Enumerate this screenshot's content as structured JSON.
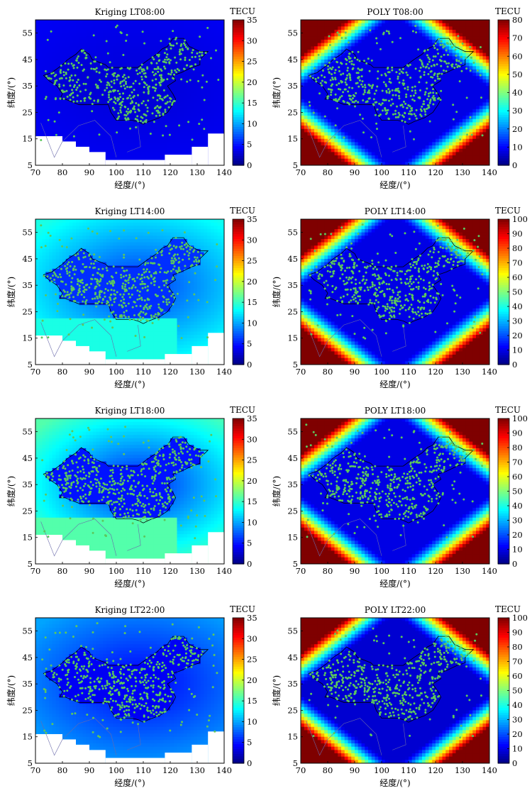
{
  "figure": {
    "colorbar_unit": "TECU"
  },
  "chart_data": [
    {
      "type": "heatmap",
      "method": "Kriging",
      "title": "Kriging LT08:00",
      "xlabel": "经度/(°)",
      "ylabel": "纬度/(°)",
      "xlim": [
        70,
        140
      ],
      "ylim": [
        5,
        60
      ],
      "xticks": [
        70,
        80,
        90,
        100,
        110,
        120,
        130,
        140
      ],
      "yticks": [
        5,
        15,
        25,
        35,
        45,
        55
      ],
      "clim": [
        0,
        35
      ],
      "cticks": [
        0,
        5,
        10,
        15,
        20,
        25,
        30,
        35
      ],
      "colorbar_label": "TECU",
      "base_tec": 3,
      "edge_tec": 4
    },
    {
      "type": "heatmap",
      "method": "POLY",
      "title": "POLY T08:00",
      "xlabel": "经度/(°)",
      "ylabel": "纬度/(°)",
      "xlim": [
        70,
        140
      ],
      "ylim": [
        5,
        60
      ],
      "xticks": [
        70,
        80,
        90,
        100,
        110,
        120,
        130,
        140
      ],
      "yticks": [
        5,
        15,
        25,
        35,
        45,
        55
      ],
      "clim": [
        0,
        80
      ],
      "cticks": [
        0,
        10,
        20,
        30,
        40,
        50,
        60,
        70,
        80
      ],
      "colorbar_label": "TECU",
      "base_tec": 8,
      "corner_tec": 80
    },
    {
      "type": "heatmap",
      "method": "Kriging",
      "title": "Kriging LT14:00",
      "xlabel": "经度/(°)",
      "ylabel": "纬度/(°)",
      "xlim": [
        70,
        140
      ],
      "ylim": [
        5,
        60
      ],
      "xticks": [
        70,
        80,
        90,
        100,
        110,
        120,
        130,
        140
      ],
      "yticks": [
        5,
        15,
        25,
        35,
        45,
        55
      ],
      "clim": [
        0,
        35
      ],
      "cticks": [
        0,
        5,
        10,
        15,
        20,
        25,
        30,
        35
      ],
      "colorbar_label": "TECU",
      "base_tec": 6,
      "edge_tec": 14
    },
    {
      "type": "heatmap",
      "method": "POLY",
      "title": "POLY LT14:00",
      "xlabel": "经度/(°)",
      "ylabel": "纬度/(°)",
      "xlim": [
        70,
        140
      ],
      "ylim": [
        5,
        60
      ],
      "xticks": [
        70,
        80,
        90,
        100,
        110,
        120,
        130,
        140
      ],
      "yticks": [
        5,
        15,
        25,
        35,
        45,
        55
      ],
      "clim": [
        0,
        100
      ],
      "cticks": [
        0,
        10,
        20,
        30,
        40,
        50,
        60,
        70,
        80,
        90,
        100
      ],
      "colorbar_label": "TECU",
      "base_tec": 10,
      "corner_tec": 100
    },
    {
      "type": "heatmap",
      "method": "Kriging",
      "title": "Kriging LT18:00",
      "xlabel": "经度/(°)",
      "ylabel": "纬度/(°)",
      "xlim": [
        70,
        140
      ],
      "ylim": [
        5,
        60
      ],
      "xticks": [
        70,
        80,
        90,
        100,
        110,
        120,
        130,
        140
      ],
      "yticks": [
        5,
        15,
        25,
        35,
        45,
        55
      ],
      "clim": [
        0,
        35
      ],
      "cticks": [
        0,
        5,
        10,
        15,
        20,
        25,
        30,
        35
      ],
      "colorbar_label": "TECU",
      "base_tec": 5,
      "edge_tec": 16
    },
    {
      "type": "heatmap",
      "method": "POLY",
      "title": "POLY LT18:00",
      "xlabel": "经度/(°)",
      "ylabel": "纬度/(°)",
      "xlim": [
        70,
        140
      ],
      "ylim": [
        5,
        60
      ],
      "xticks": [
        70,
        80,
        90,
        100,
        110,
        120,
        130,
        140
      ],
      "yticks": [
        5,
        15,
        25,
        35,
        45,
        55
      ],
      "clim": [
        0,
        100
      ],
      "cticks": [
        0,
        10,
        20,
        30,
        40,
        50,
        60,
        70,
        80,
        90,
        100
      ],
      "colorbar_label": "TECU",
      "base_tec": 10,
      "corner_tec": 100
    },
    {
      "type": "heatmap",
      "method": "Kriging",
      "title": "Kriging LT22:00",
      "xlabel": "经度/(°)",
      "ylabel": "纬度/(°)",
      "xlim": [
        70,
        140
      ],
      "ylim": [
        5,
        60
      ],
      "xticks": [
        70,
        80,
        90,
        100,
        110,
        120,
        130,
        140
      ],
      "yticks": [
        5,
        15,
        25,
        35,
        45,
        55
      ],
      "clim": [
        0,
        35
      ],
      "cticks": [
        0,
        5,
        10,
        15,
        20,
        25,
        30,
        35
      ],
      "colorbar_label": "TECU",
      "base_tec": 4,
      "edge_tec": 10
    },
    {
      "type": "heatmap",
      "method": "POLY",
      "title": "POLY  LT22:00",
      "xlabel": "经度/(°)",
      "ylabel": "纬度/(°)",
      "xlim": [
        70,
        140
      ],
      "ylim": [
        5,
        60
      ],
      "xticks": [
        70,
        80,
        90,
        100,
        110,
        120,
        130,
        140
      ],
      "yticks": [
        5,
        15,
        25,
        35,
        45,
        55
      ],
      "clim": [
        0,
        100
      ],
      "cticks": [
        0,
        10,
        20,
        30,
        40,
        50,
        60,
        70,
        80,
        90,
        100
      ],
      "colorbar_label": "TECU",
      "base_tec": 8,
      "corner_tec": 100
    }
  ],
  "colors": {
    "station": "#5cc85c",
    "border": "#000000",
    "coast": "#6a6aaa",
    "missing": "#ffffff",
    "colormap": [
      "#00007f",
      "#0000ff",
      "#007fff",
      "#00ffff",
      "#7fff7f",
      "#ffff00",
      "#ff7f00",
      "#ff0000",
      "#7f0000"
    ]
  }
}
